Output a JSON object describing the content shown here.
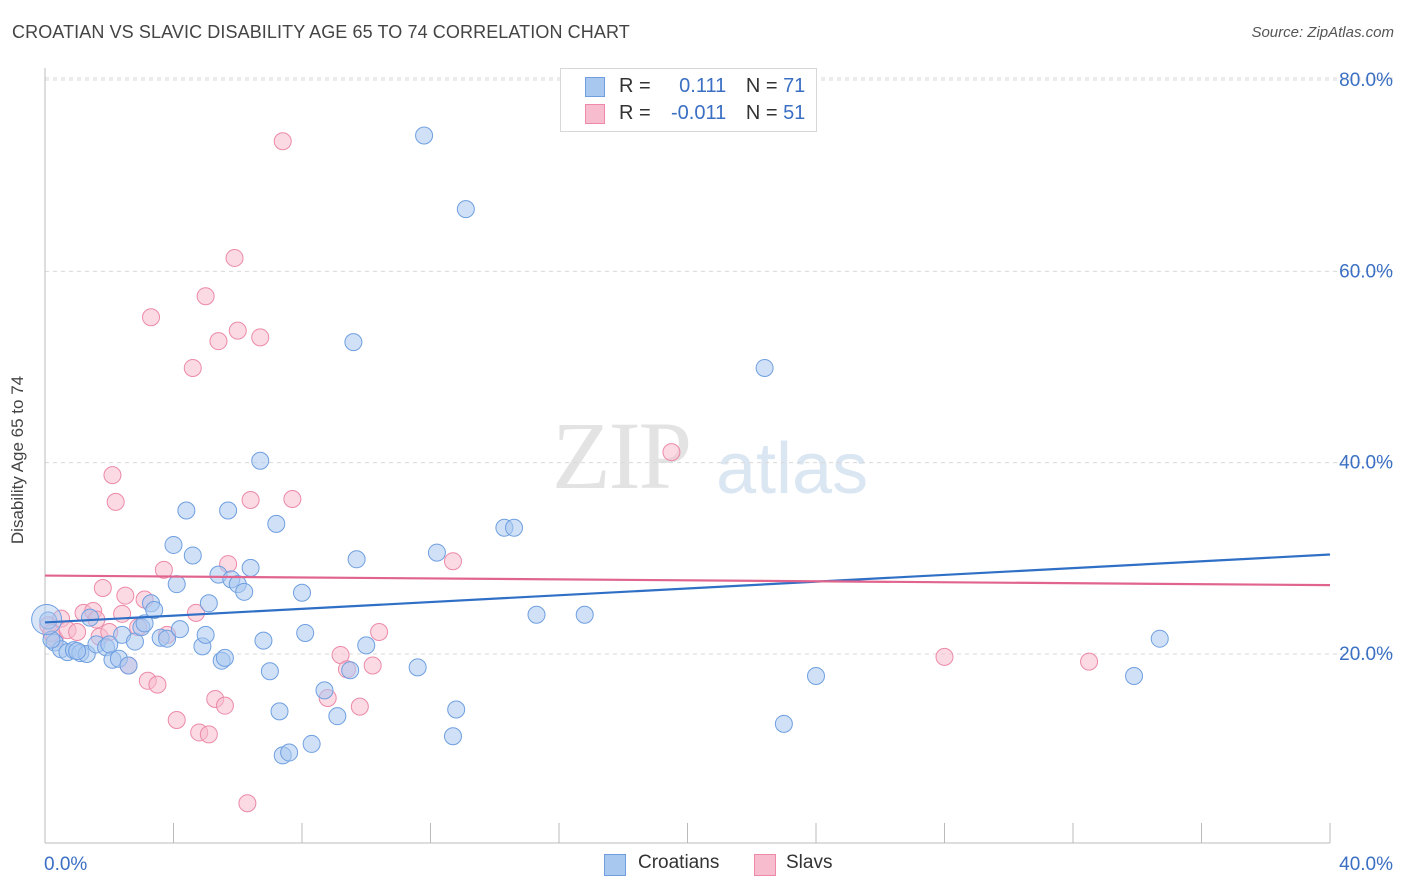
{
  "title": "CROATIAN VS SLAVIC DISABILITY AGE 65 TO 74 CORRELATION CHART",
  "source": "Source: ZipAtlas.com",
  "watermark": {
    "zip": "ZIP",
    "atlas": "atlas"
  },
  "legend": {
    "rows": [
      {
        "r_label": "R =",
        "r_value": "0.111",
        "n_label": "N =",
        "n_value": "71"
      },
      {
        "r_label": "R =",
        "r_value": "-0.011",
        "n_label": "N =",
        "n_value": "51"
      }
    ]
  },
  "bottom_legend": {
    "croatians": "Croatians",
    "slavs": "Slavs"
  },
  "colors": {
    "croatians_fill": "#a9c8f0",
    "croatians_stroke": "#6f9fe0",
    "croatians_line": "#2f6fc6",
    "slavs_fill": "#f7bccd",
    "slavs_stroke": "#ec8aa8",
    "slavs_line": "#e0648e",
    "tick_label": "#3a6fc4",
    "grid": "#d9d9d9"
  },
  "chart_data": {
    "type": "scatter",
    "title": "CROATIAN VS SLAVIC DISABILITY AGE 65 TO 74 CORRELATION CHART",
    "xlabel": "",
    "ylabel": "Disability Age 65 to 74",
    "xlim": [
      0,
      40
    ],
    "ylim": [
      2,
      82
    ],
    "x_tick_labels": [
      "0.0%",
      "40.0%"
    ],
    "y_ticks": [
      20,
      40,
      60,
      80
    ],
    "y_tick_labels": [
      "20.0%",
      "40.0%",
      "60.0%",
      "80.0%"
    ],
    "grid": true,
    "legend_position": "top-center",
    "series": [
      {
        "name": "Croatians",
        "trend": {
          "x": [
            0,
            40
          ],
          "y": [
            23.3,
            30.4
          ]
        },
        "points": [
          [
            0.1,
            23.5
          ],
          [
            0.3,
            21.2
          ],
          [
            0.5,
            20.5
          ],
          [
            0.7,
            20.2
          ],
          [
            0.9,
            20.4
          ],
          [
            1.1,
            20.1
          ],
          [
            1.3,
            20.0
          ],
          [
            1.4,
            23.8
          ],
          [
            1.6,
            21.0
          ],
          [
            1.9,
            20.7
          ],
          [
            2.1,
            19.4
          ],
          [
            2.3,
            19.5
          ],
          [
            2.4,
            22.0
          ],
          [
            2.6,
            18.8
          ],
          [
            2.8,
            21.3
          ],
          [
            3.0,
            22.8
          ],
          [
            3.1,
            23.2
          ],
          [
            3.3,
            25.3
          ],
          [
            3.4,
            24.6
          ],
          [
            3.6,
            21.7
          ],
          [
            3.8,
            21.6
          ],
          [
            4.0,
            31.4
          ],
          [
            4.1,
            27.3
          ],
          [
            4.2,
            22.6
          ],
          [
            4.4,
            35.0
          ],
          [
            4.6,
            30.3
          ],
          [
            4.9,
            20.8
          ],
          [
            5.0,
            22.0
          ],
          [
            5.1,
            25.3
          ],
          [
            5.4,
            28.3
          ],
          [
            5.5,
            19.3
          ],
          [
            5.6,
            19.6
          ],
          [
            5.7,
            35.0
          ],
          [
            5.8,
            27.8
          ],
          [
            6.0,
            27.3
          ],
          [
            6.2,
            26.5
          ],
          [
            6.4,
            29.0
          ],
          [
            6.7,
            40.2
          ],
          [
            6.8,
            21.4
          ],
          [
            7.0,
            18.2
          ],
          [
            7.2,
            33.6
          ],
          [
            7.3,
            14.0
          ],
          [
            7.4,
            9.4
          ],
          [
            7.6,
            9.7
          ],
          [
            8.0,
            26.4
          ],
          [
            8.1,
            22.2
          ],
          [
            8.3,
            10.6
          ],
          [
            8.7,
            16.2
          ],
          [
            9.1,
            13.5
          ],
          [
            9.5,
            18.3
          ],
          [
            9.6,
            52.6
          ],
          [
            9.7,
            29.9
          ],
          [
            10.0,
            20.9
          ],
          [
            11.6,
            18.6
          ],
          [
            11.8,
            74.2
          ],
          [
            12.2,
            30.6
          ],
          [
            12.7,
            11.4
          ],
          [
            12.8,
            14.2
          ],
          [
            13.1,
            66.5
          ],
          [
            14.3,
            33.2
          ],
          [
            14.6,
            33.2
          ],
          [
            15.3,
            24.1
          ],
          [
            16.8,
            24.1
          ],
          [
            22.4,
            49.9
          ],
          [
            23.0,
            12.7
          ],
          [
            24.0,
            17.7
          ],
          [
            34.7,
            21.6
          ],
          [
            33.9,
            17.7
          ],
          [
            0.2,
            21.5
          ],
          [
            1.0,
            20.3
          ],
          [
            2.0,
            21.0
          ]
        ]
      },
      {
        "name": "Slavs",
        "trend": {
          "x": [
            0,
            40
          ],
          "y": [
            28.2,
            27.2
          ]
        },
        "points": [
          [
            0.1,
            23.0
          ],
          [
            0.3,
            21.6
          ],
          [
            0.5,
            23.7
          ],
          [
            0.7,
            22.5
          ],
          [
            1.0,
            22.3
          ],
          [
            1.2,
            24.3
          ],
          [
            1.5,
            24.5
          ],
          [
            1.6,
            23.6
          ],
          [
            1.7,
            21.8
          ],
          [
            1.8,
            26.9
          ],
          [
            2.0,
            22.3
          ],
          [
            2.1,
            38.7
          ],
          [
            2.2,
            35.9
          ],
          [
            2.4,
            24.2
          ],
          [
            2.5,
            26.1
          ],
          [
            2.6,
            18.8
          ],
          [
            2.9,
            22.8
          ],
          [
            3.1,
            25.7
          ],
          [
            3.2,
            17.2
          ],
          [
            3.3,
            55.2
          ],
          [
            3.5,
            16.8
          ],
          [
            3.7,
            28.8
          ],
          [
            3.8,
            22.0
          ],
          [
            4.1,
            13.1
          ],
          [
            4.6,
            49.9
          ],
          [
            4.7,
            24.3
          ],
          [
            4.8,
            11.8
          ],
          [
            5.0,
            57.4
          ],
          [
            5.1,
            11.6
          ],
          [
            5.3,
            15.3
          ],
          [
            5.4,
            52.7
          ],
          [
            5.6,
            14.6
          ],
          [
            5.7,
            29.4
          ],
          [
            5.9,
            61.4
          ],
          [
            6.0,
            53.8
          ],
          [
            6.3,
            4.4
          ],
          [
            6.4,
            36.1
          ],
          [
            6.7,
            53.1
          ],
          [
            7.4,
            73.6
          ],
          [
            7.7,
            36.2
          ],
          [
            8.8,
            15.4
          ],
          [
            9.2,
            19.9
          ],
          [
            9.4,
            18.4
          ],
          [
            9.8,
            14.5
          ],
          [
            10.2,
            18.8
          ],
          [
            10.4,
            22.3
          ],
          [
            12.7,
            29.7
          ],
          [
            19.5,
            41.1
          ],
          [
            28.0,
            19.7
          ],
          [
            32.5,
            19.2
          ],
          [
            0.2,
            22.2
          ]
        ]
      }
    ]
  }
}
